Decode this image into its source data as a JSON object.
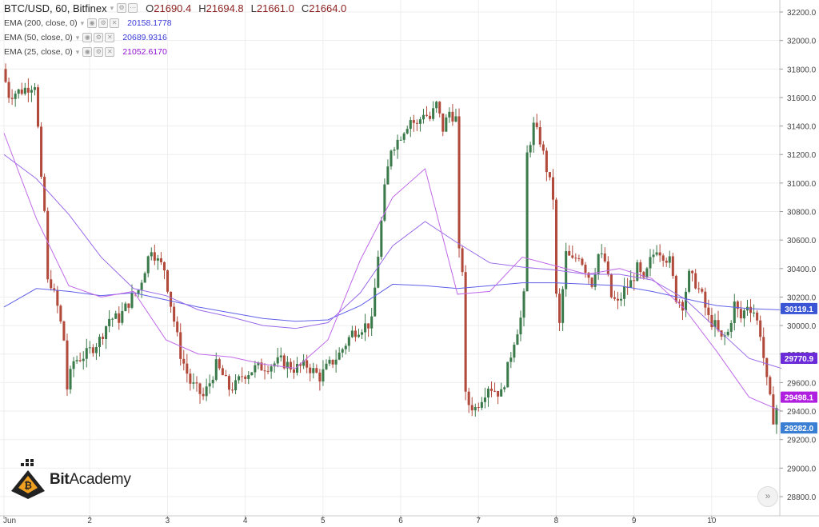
{
  "header": {
    "symbol": "BTC/USD, 60, Bitfinex",
    "open_label": "O",
    "open": "21690.4",
    "high_label": "H",
    "high": "21694.8",
    "low_label": "L",
    "low": "21661.0",
    "close_label": "C",
    "close": "21664.0"
  },
  "indicators": [
    {
      "label": "EMA (200, close, 0)",
      "value": "20158.1778",
      "color": "#4040e0"
    },
    {
      "label": "EMA (50, close, 0)",
      "value": "20689.9316",
      "color": "#4040e0"
    },
    {
      "label": "EMA (25, close, 0)",
      "value": "21052.6170",
      "color": "#9010d0"
    }
  ],
  "logo": {
    "part1": "Bit",
    "part2": "Academy"
  },
  "colors": {
    "up": "#3b7a4a",
    "down": "#b24a3c",
    "ema200": "#6060e8",
    "ema50": "#9a6ae8",
    "ema25": "#c06ae8",
    "grid": "#eeeeee"
  },
  "chart_data": {
    "type": "candlestick",
    "ylim": [
      28750,
      32250
    ],
    "y_ticks": [
      "32200.0",
      "32000.0",
      "31800.0",
      "31600.0",
      "31400.0",
      "31200.0",
      "31000.0",
      "30800.0",
      "30600.0",
      "30400.0",
      "30200.0",
      "30000.0",
      "29800.0",
      "29600.0",
      "29400.0",
      "29200.0",
      "29000.0",
      "28800.0"
    ],
    "x_labels": [
      {
        "label": "Jun",
        "bar": 0
      },
      {
        "label": "2",
        "bar": 24
      },
      {
        "label": "3",
        "bar": 48
      },
      {
        "label": "4",
        "bar": 72
      },
      {
        "label": "5",
        "bar": 96
      },
      {
        "label": "6",
        "bar": 120
      },
      {
        "label": "7",
        "bar": 144
      },
      {
        "label": "8",
        "bar": 168
      },
      {
        "label": "9",
        "bar": 192
      },
      {
        "label": "10",
        "bar": 216
      }
    ],
    "price_labels": [
      {
        "value": "30119.1",
        "price": 30119.1,
        "color": "#3a56d4"
      },
      {
        "value": "29770.9",
        "price": 29770.9,
        "color": "#6b2bd8"
      },
      {
        "value": "29498.1",
        "price": 29498.1,
        "color": "#b01ee0"
      },
      {
        "value": "29282.0",
        "price": 29282.0,
        "color": "#3a7fd4"
      }
    ],
    "series": [
      {
        "name": "EMA (200, close, 0)",
        "x": [
          0,
          10,
          20,
          30,
          40,
          50,
          60,
          70,
          80,
          90,
          100,
          110,
          120,
          130,
          140,
          150,
          160,
          170,
          180,
          190,
          200,
          210,
          220,
          230,
          240
        ],
        "values": [
          30130,
          30260,
          30240,
          30210,
          30230,
          30180,
          30130,
          30090,
          30050,
          30030,
          30040,
          30140,
          30290,
          30280,
          30260,
          30280,
          30300,
          30300,
          30290,
          30280,
          30240,
          30190,
          30140,
          30119,
          30110
        ]
      },
      {
        "name": "EMA (50, close, 0)",
        "x": [
          0,
          10,
          20,
          30,
          40,
          50,
          60,
          70,
          80,
          90,
          100,
          110,
          120,
          130,
          140,
          150,
          160,
          170,
          180,
          190,
          200,
          210,
          220,
          230,
          240
        ],
        "values": [
          31200,
          31030,
          30780,
          30480,
          30260,
          30210,
          30110,
          30060,
          30000,
          29980,
          30020,
          30230,
          30560,
          30730,
          30580,
          30440,
          30410,
          30390,
          30360,
          30360,
          30320,
          30190,
          29980,
          29770,
          29700
        ]
      },
      {
        "name": "EMA (25, close, 0)",
        "x": [
          0,
          10,
          20,
          30,
          40,
          50,
          60,
          70,
          80,
          90,
          100,
          110,
          120,
          130,
          140,
          150,
          160,
          170,
          180,
          190,
          200,
          210,
          220,
          230,
          240
        ],
        "values": [
          31350,
          30750,
          30280,
          30200,
          30240,
          29900,
          29800,
          29780,
          29730,
          29700,
          29900,
          30460,
          30900,
          31100,
          30220,
          30240,
          30480,
          30420,
          30360,
          30400,
          30330,
          30120,
          29820,
          29498,
          29400
        ]
      }
    ]
  }
}
